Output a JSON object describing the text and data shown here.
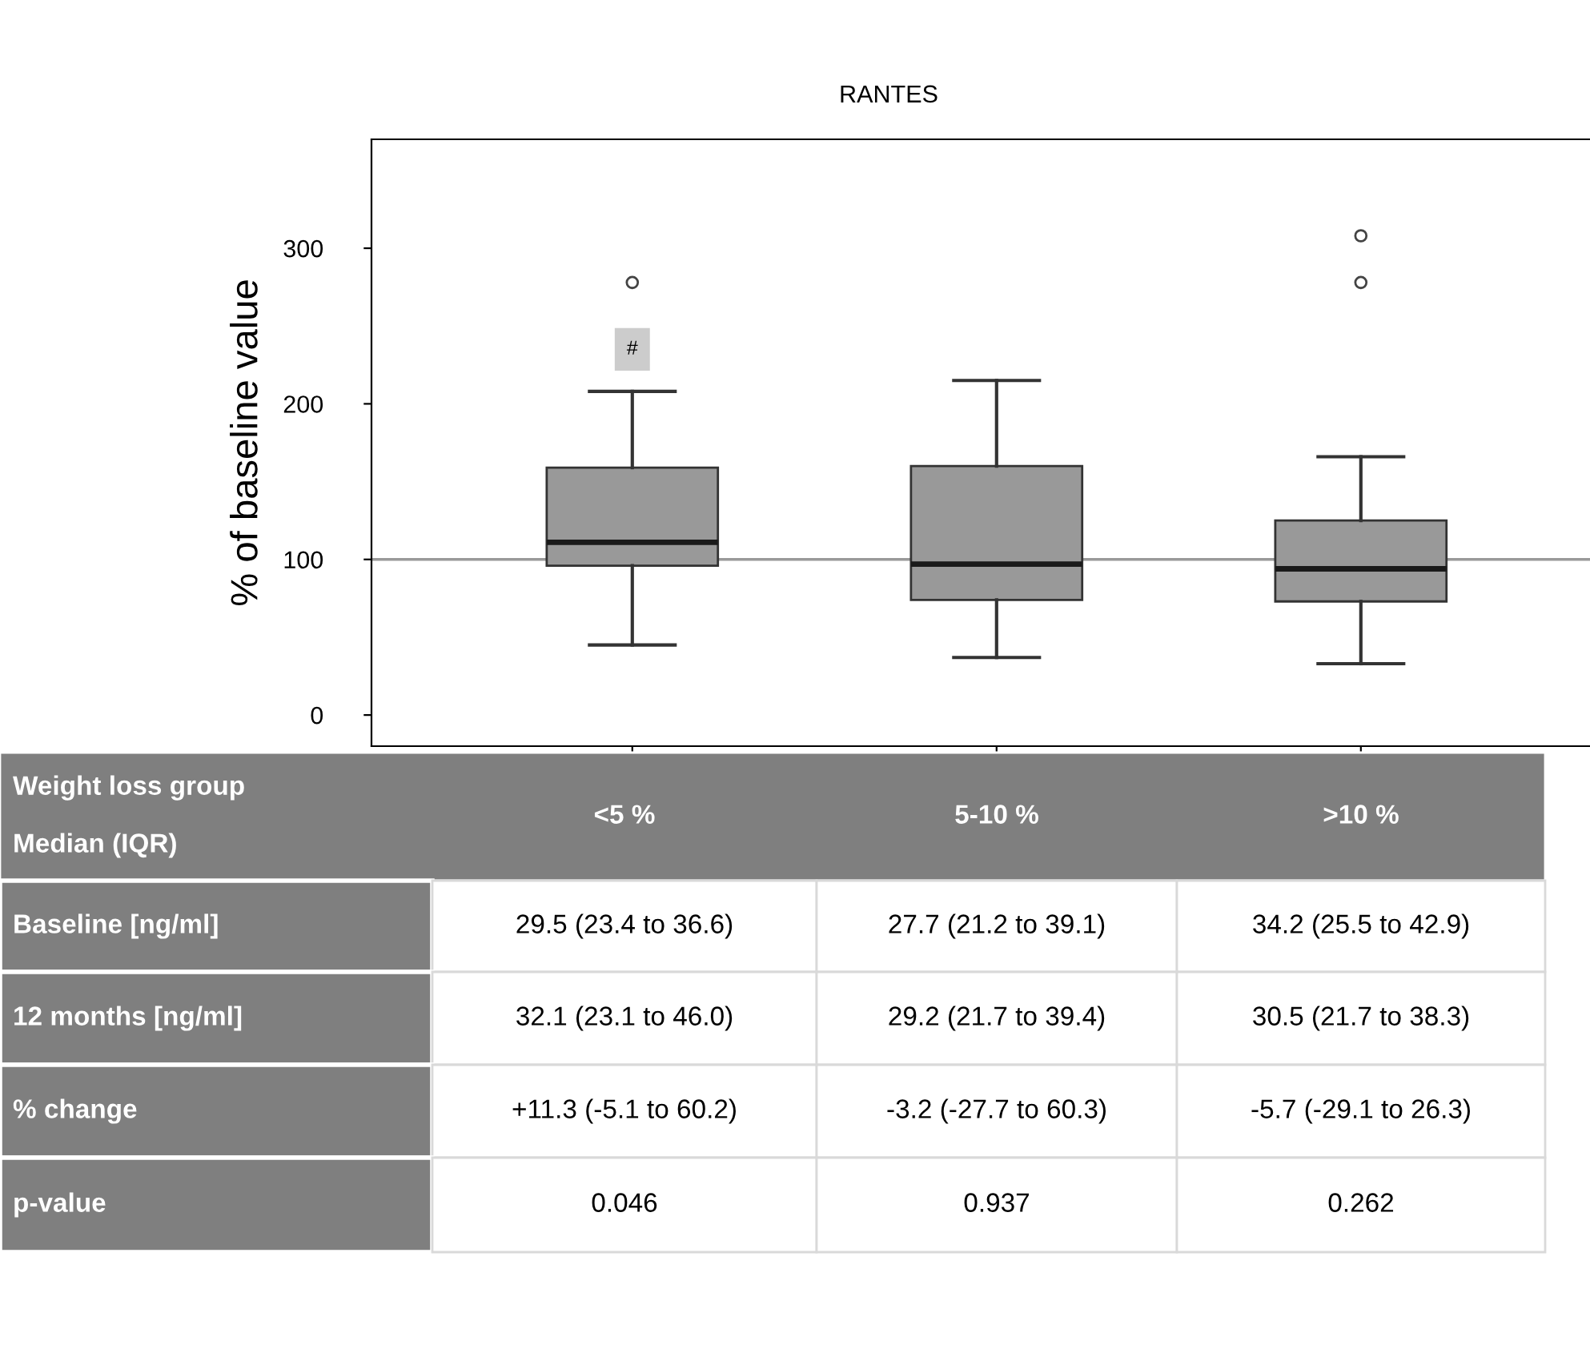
{
  "chart_data": {
    "type": "box",
    "title": "RANTES",
    "ylabel": "% of baseline value",
    "categories": [
      "<5 %",
      "5-10 %",
      ">10 %"
    ],
    "boxes": [
      {
        "low": 45,
        "q1": 96,
        "median": 111,
        "q3": 159,
        "high": 208,
        "outliers": [
          278
        ]
      },
      {
        "low": 37,
        "q1": 74,
        "median": 97,
        "q3": 160,
        "high": 215
      },
      {
        "low": 33,
        "q1": 73,
        "median": 94,
        "q3": 125,
        "high": 166,
        "outliers": [
          278,
          308
        ]
      }
    ],
    "color": "#999999",
    "ylim": [
      -20,
      370
    ],
    "yticks": [
      0,
      100,
      200,
      300
    ],
    "grid": false,
    "legend": false,
    "ref_lines": [
      {
        "axis": "y",
        "value": 100,
        "color": "#999999"
      }
    ],
    "annotations": [
      {
        "text": "#",
        "x": "<5 %",
        "y": 235
      },
      "Weight loss group\n\nMedian (IQR)",
      "Baseline [ng/ml]",
      "29.5 (23.4 to 36.6)",
      "27.7 (21.2 to 39.1)",
      "34.2 (25.5 to 42.9)",
      "12 months [ng/ml]",
      "32.1 (23.1 to 46.0)",
      "29.2 (21.7 to 39.4)",
      "30.5 (21.7 to 38.3)",
      "% change",
      "+11.3 (-5.1 to 60.2)",
      "-3.2 (-27.7 to 60.3)",
      "-5.7 (-29.1 to 26.3)",
      "p-value",
      "0.046",
      "0.937",
      "0.262"
    ]
  }
}
